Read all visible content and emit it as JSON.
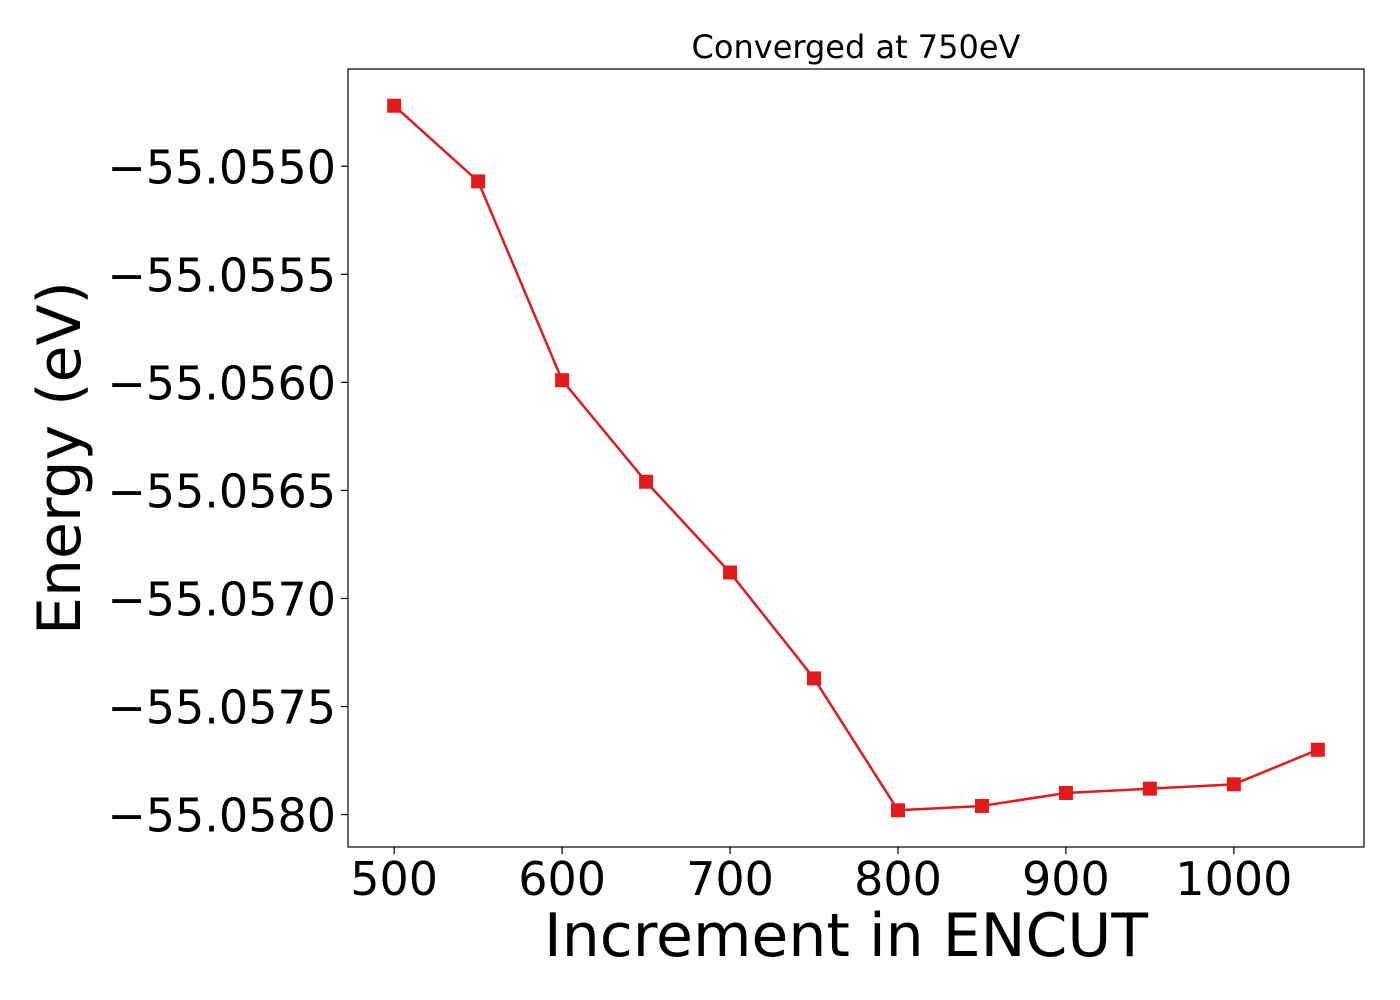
{
  "chart_data": {
    "type": "line",
    "title": "Converged at 750eV",
    "xlabel": "Increment in ENCUT",
    "ylabel": "Energy (eV)",
    "xlim": [
      472.5,
      1077.5
    ],
    "ylim": [
      -55.05815,
      -55.05455
    ],
    "xticks": [
      500,
      600,
      700,
      800,
      900,
      1000
    ],
    "xtick_labels": [
      "500",
      "600",
      "700",
      "800",
      "900",
      "1000"
    ],
    "yticks": [
      -55.055,
      -55.0555,
      -55.056,
      -55.0565,
      -55.057,
      -55.0575,
      -55.058
    ],
    "ytick_labels": [
      "−55.0550",
      "−55.0555",
      "−55.0560",
      "−55.0565",
      "−55.0570",
      "−55.0575",
      "−55.0580"
    ],
    "grid": false,
    "series": [
      {
        "color": "#e31a1c",
        "marker": "square",
        "x": [
          500,
          550,
          600,
          650,
          700,
          750,
          800,
          850,
          900,
          950,
          1000,
          1050
        ],
        "y": [
          -55.05472,
          -55.05507,
          -55.05599,
          -55.05646,
          -55.05688,
          -55.05737,
          -55.05798,
          -55.05796,
          -55.0579,
          -55.05788,
          -55.05786,
          -55.0577
        ]
      }
    ]
  }
}
